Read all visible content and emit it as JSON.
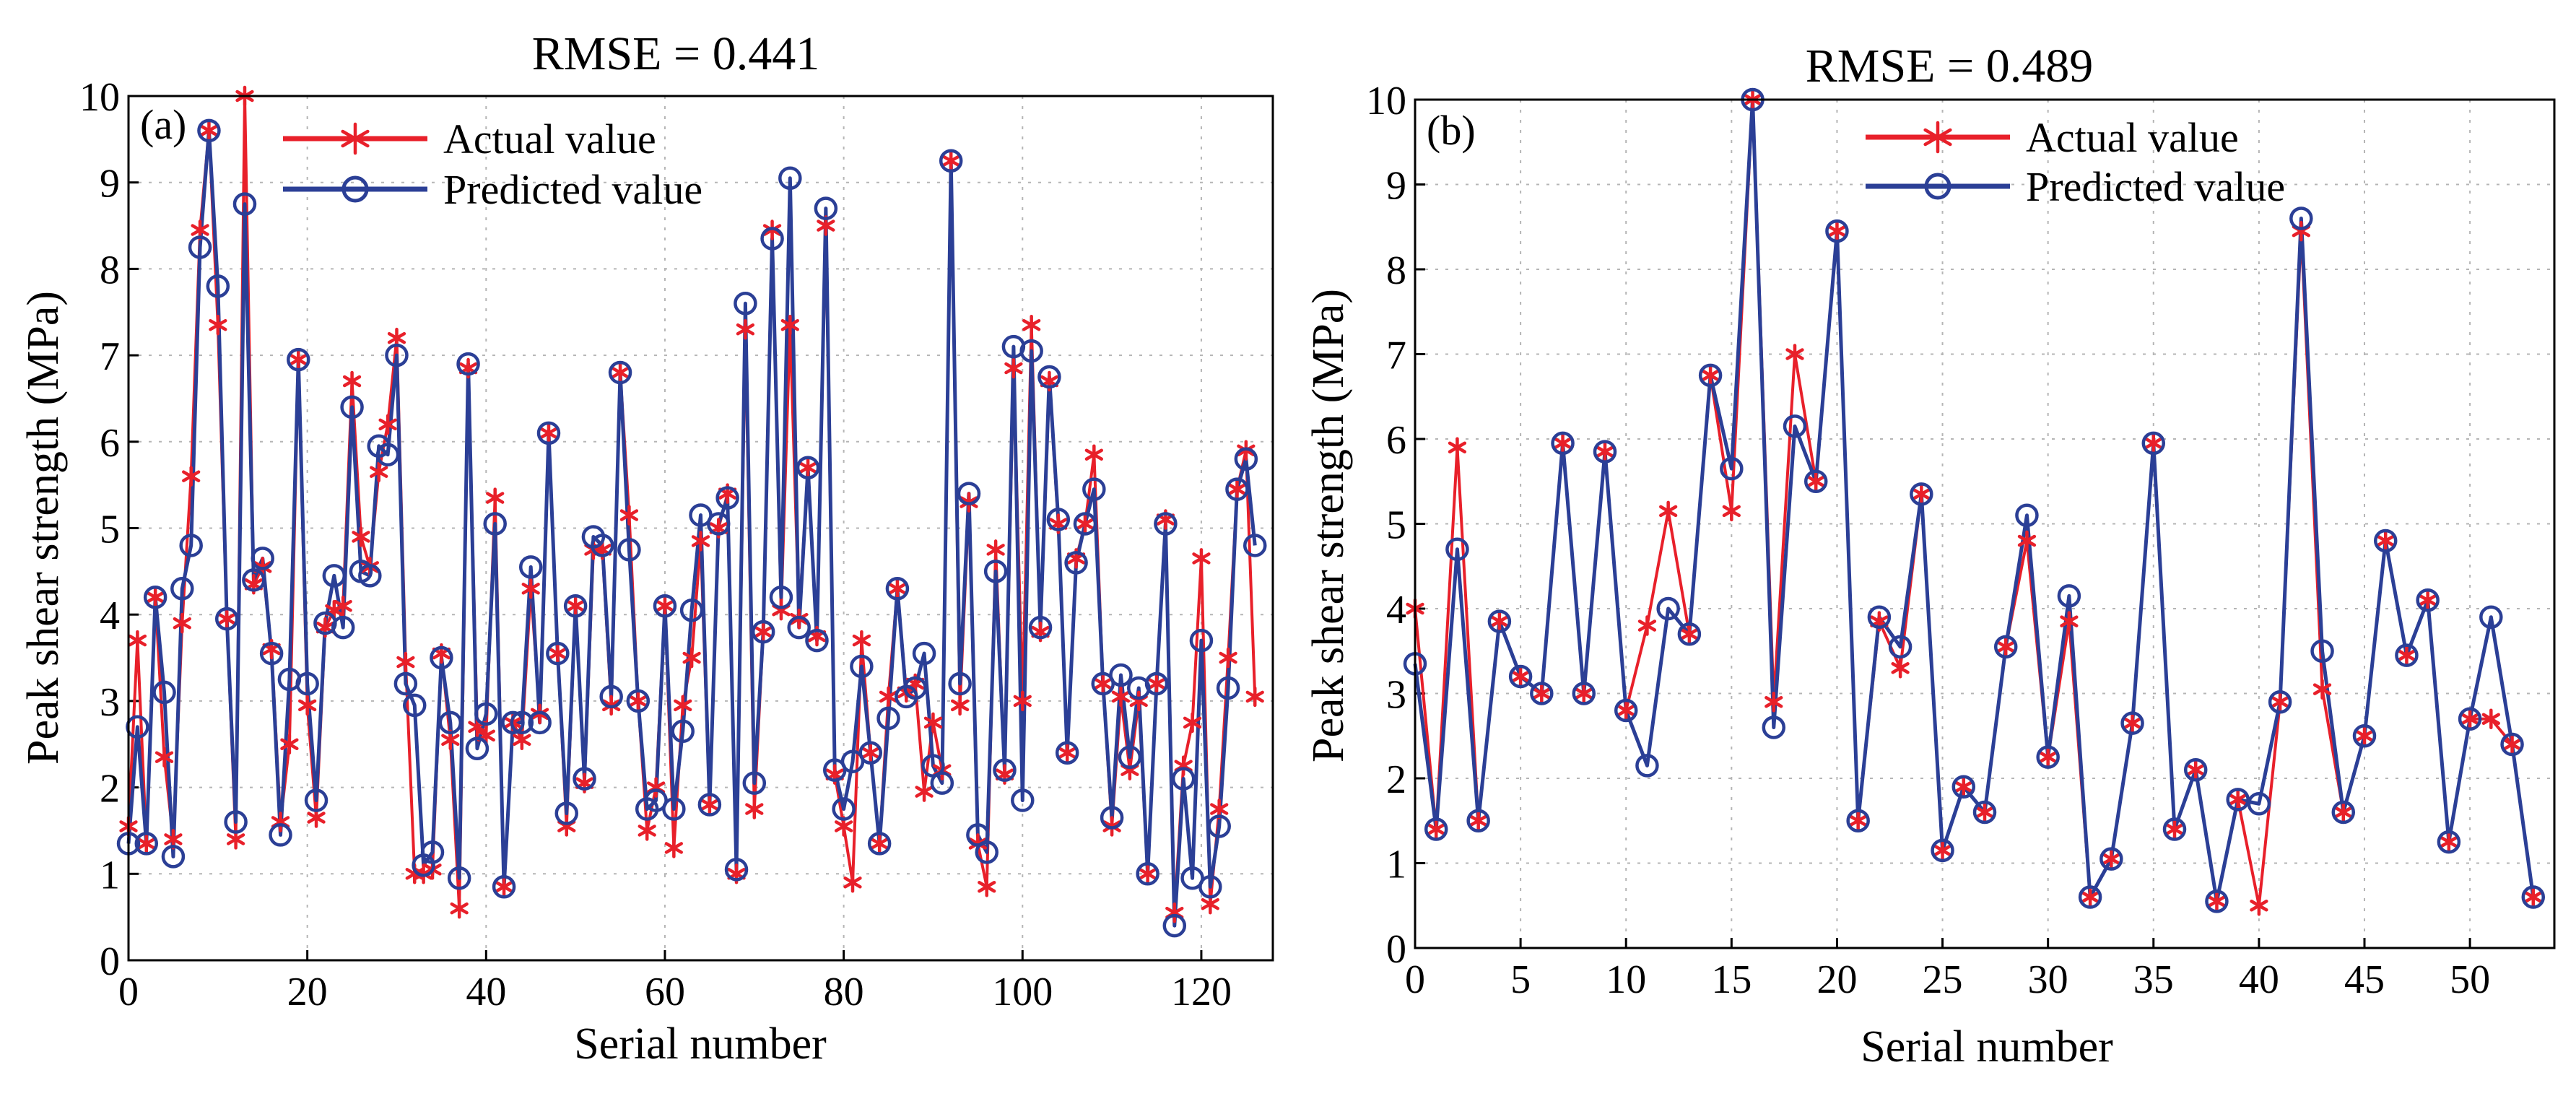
{
  "chart_data": [
    {
      "id": "a",
      "type": "line",
      "panel_label": "(a)",
      "title": "RMSE = 0.441",
      "xlabel": "Serial number",
      "ylabel": "Peak shear strength (MPa)",
      "xlim": [
        0,
        128
      ],
      "ylim": [
        0,
        10
      ],
      "xticks": [
        0,
        20,
        40,
        60,
        80,
        100,
        120
      ],
      "yticks": [
        0,
        1,
        2,
        3,
        4,
        5,
        6,
        7,
        8,
        9,
        10
      ],
      "grid": true,
      "legend_position": "top-left",
      "series": [
        {
          "name": "Actual value",
          "color": "#e8202a",
          "marker": "asterisk",
          "values": [
            1.55,
            3.7,
            1.35,
            4.2,
            2.35,
            1.4,
            3.9,
            5.6,
            8.45,
            9.6,
            7.35,
            3.95,
            1.4,
            10.0,
            4.35,
            4.55,
            3.6,
            1.6,
            2.5,
            6.95,
            2.95,
            1.65,
            3.85,
            4.05,
            4.1,
            6.7,
            4.9,
            4.55,
            5.65,
            6.2,
            7.2,
            3.45,
            1.0,
            1.0,
            1.05,
            3.55,
            2.55,
            0.6,
            6.85,
            2.7,
            2.6,
            5.35,
            0.85,
            2.75,
            2.55,
            4.3,
            2.85,
            6.1,
            3.55,
            1.55,
            4.1,
            2.05,
            4.75,
            4.75,
            2.95,
            6.8,
            5.15,
            3.0,
            1.5,
            2.0,
            4.1,
            1.3,
            2.95,
            3.5,
            4.85,
            1.8,
            5.0,
            5.4,
            1.0,
            7.3,
            1.75,
            3.8,
            8.45,
            4.05,
            7.35,
            3.95,
            5.7,
            3.75,
            8.5,
            2.15,
            1.55,
            0.9,
            3.7,
            2.4,
            1.35,
            3.05,
            4.3,
            3.1,
            3.2,
            1.95,
            2.75,
            2.2,
            9.25,
            2.95,
            5.3,
            1.35,
            0.85,
            4.75,
            2.15,
            6.85,
            3.0,
            7.35,
            3.8,
            6.7,
            5.05,
            2.4,
            4.65,
            5.05,
            5.85,
            3.2,
            1.55,
            3.05,
            2.2,
            3.0,
            1.0,
            3.2,
            5.1,
            0.55,
            2.25,
            2.75,
            4.65,
            0.65,
            1.75,
            3.5,
            5.45,
            5.9,
            3.05
          ]
        },
        {
          "name": "Predicted value",
          "color": "#2b3f96",
          "marker": "circle",
          "values": [
            1.35,
            2.7,
            1.35,
            4.2,
            3.1,
            1.2,
            4.3,
            4.8,
            8.25,
            9.6,
            7.8,
            3.95,
            1.6,
            8.75,
            4.4,
            4.65,
            3.55,
            1.45,
            3.25,
            6.95,
            3.2,
            1.85,
            3.9,
            4.45,
            3.85,
            6.4,
            4.5,
            4.45,
            5.95,
            5.85,
            7.0,
            3.2,
            2.95,
            1.1,
            1.25,
            3.5,
            2.75,
            0.95,
            6.9,
            2.45,
            2.85,
            5.05,
            0.85,
            2.75,
            2.75,
            4.55,
            2.75,
            6.1,
            3.55,
            1.7,
            4.1,
            2.1,
            4.9,
            4.8,
            3.05,
            6.8,
            4.75,
            3.0,
            1.75,
            1.85,
            4.1,
            1.75,
            2.65,
            4.05,
            5.15,
            1.8,
            5.05,
            5.35,
            1.05,
            7.6,
            2.05,
            3.8,
            8.35,
            4.2,
            9.05,
            3.85,
            5.7,
            3.7,
            8.7,
            2.2,
            1.75,
            2.3,
            3.4,
            2.4,
            1.35,
            2.8,
            4.3,
            3.05,
            3.15,
            3.55,
            2.25,
            2.05,
            9.25,
            3.2,
            5.4,
            1.45,
            1.25,
            4.5,
            2.2,
            7.1,
            1.85,
            7.05,
            3.85,
            6.75,
            5.1,
            2.4,
            4.6,
            5.05,
            5.45,
            3.2,
            1.65,
            3.3,
            2.35,
            3.15,
            1.0,
            3.2,
            5.05,
            0.4,
            2.1,
            0.95,
            3.7,
            0.85,
            1.55,
            3.15,
            5.45,
            5.8,
            4.8
          ]
        }
      ]
    },
    {
      "id": "b",
      "type": "line",
      "panel_label": "(b)",
      "title": "RMSE = 0.489",
      "xlabel": "Serial number",
      "ylabel": "Peak shear strength (MPa)",
      "xlim": [
        0,
        54
      ],
      "ylim": [
        0,
        10
      ],
      "xticks": [
        0,
        5,
        10,
        15,
        20,
        25,
        30,
        35,
        40,
        45,
        50
      ],
      "yticks": [
        0,
        1,
        2,
        3,
        4,
        5,
        6,
        7,
        8,
        9,
        10
      ],
      "grid": true,
      "legend_position": "top-left",
      "series": [
        {
          "name": "Actual value",
          "color": "#e8202a",
          "marker": "asterisk",
          "values": [
            4.0,
            1.4,
            5.9,
            1.5,
            3.85,
            3.2,
            3.0,
            5.95,
            3.0,
            5.85,
            2.8,
            3.8,
            5.15,
            3.7,
            6.75,
            5.15,
            10.0,
            2.9,
            7.0,
            5.5,
            8.45,
            1.5,
            3.85,
            3.3,
            5.35,
            1.15,
            1.9,
            1.6,
            3.55,
            4.8,
            2.25,
            3.85,
            0.6,
            1.05,
            2.65,
            5.95,
            1.4,
            2.1,
            0.55,
            1.75,
            0.5,
            2.9,
            8.45,
            3.05,
            1.6,
            2.5,
            4.8,
            3.45,
            4.1,
            1.25,
            2.7,
            2.7,
            2.4,
            0.6
          ]
        },
        {
          "name": "Predicted value",
          "color": "#2b3f96",
          "marker": "circle",
          "values": [
            3.35,
            1.4,
            4.7,
            1.5,
            3.85,
            3.2,
            3.0,
            5.95,
            3.0,
            5.85,
            2.8,
            2.15,
            4.0,
            3.7,
            6.75,
            5.65,
            10.0,
            2.6,
            6.15,
            5.5,
            8.45,
            1.5,
            3.9,
            3.55,
            5.35,
            1.15,
            1.9,
            1.6,
            3.55,
            5.1,
            2.25,
            4.15,
            0.6,
            1.05,
            2.65,
            5.95,
            1.4,
            2.1,
            0.55,
            1.75,
            1.7,
            2.9,
            8.6,
            3.5,
            1.6,
            2.5,
            4.8,
            3.45,
            4.1,
            1.25,
            2.7,
            3.9,
            2.4,
            0.6
          ]
        }
      ]
    }
  ]
}
